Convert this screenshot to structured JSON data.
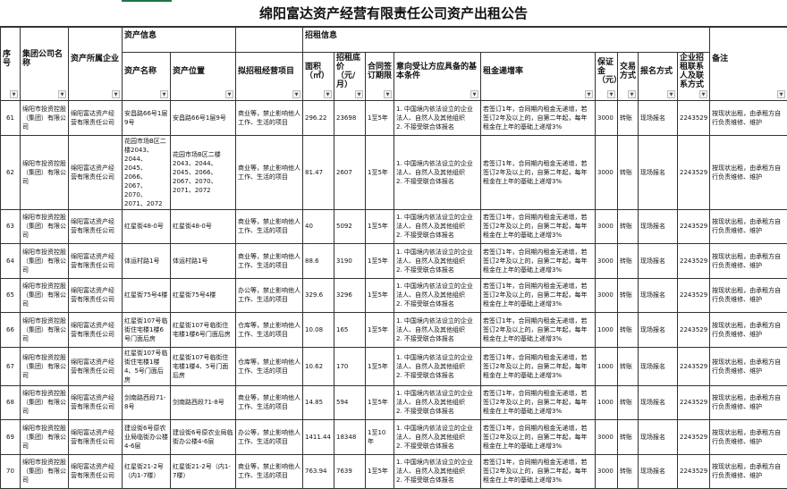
{
  "title": "绵阳富达资产经营有限责任公司资产出租公告",
  "header": {
    "group_asset": "资产信息",
    "group_lease": "招租信息",
    "cols": [
      "序号",
      "集团公司名称",
      "资产所属企业",
      "资产名称",
      "资产位置",
      "拟招租经营项目",
      "面积（㎡）",
      "招租底价（元/月）",
      "合同签订期限",
      "意向受让方应具备的基本条件",
      "租金递增率",
      "保证金（元）",
      "交易方式",
      "报名方式",
      "企业招租联系人及联系方式",
      "备注"
    ],
    "filter_icon": "dropdown-arrow-icon"
  },
  "rows": [
    {
      "no": "61",
      "group": "绵阳市投资控股（集团）有限公司",
      "owner": "绵阳富达资产经营有限责任公司",
      "name": "安昌路66号1层9号",
      "location": "安昌路66号1层9号",
      "project": "商业等，禁止影响他人工作、生活的项目",
      "area": "296.22",
      "price": "23698",
      "term": "1至5年",
      "cond": "1. 中国境内依法设立的企业法人、自然人及其他组织\n2. 不接受联合体报名",
      "rate": "若签订1年，合同期内租金无递增，若签订2年及以上的，自第二年起，每年租金在上年的基础上递增3%",
      "deposit": "3000",
      "trade": "转账",
      "signup": "现场报名",
      "contact": "2243529",
      "remark": "按现状出租，由承租方自行负责维修、维护"
    },
    {
      "no": "62",
      "group": "绵阳市投资控股（集团）有限公司",
      "owner": "绵阳富达资产经营有限责任公司",
      "name": "花园市场B区二楼2043、2044、2045、2066、2067、2070、2071、2072",
      "location": "花园市场B区二楼2043、2044、2045、2066、2067、2070、2071、2072",
      "project": "商业等，禁止影响他人工作、生活的项目",
      "area": "81.47",
      "price": "2607",
      "term": "1至5年",
      "cond": "1. 中国境内依法设立的企业法人、自然人及其他组织\n2. 不接受联合体报名",
      "rate": "若签订1年，合同期内租金无递增，若签订2年及以上的，自第二年起，每年租金在上年的基础上递增3%",
      "deposit": "3000",
      "trade": "转账",
      "signup": "现场报名",
      "contact": "2243529",
      "remark": "按现状出租，由承租方自行负责维修、维护"
    },
    {
      "no": "63",
      "group": "绵阳市投资控股（集团）有限公司",
      "owner": "绵阳富达资产经营有限责任公司",
      "name": "红星街48-0号",
      "location": "红星街48-0号",
      "project": "商业等，禁止影响他人工作、生活的项目",
      "area": "40",
      "price": "5092",
      "term": "1至5年",
      "cond": "1. 中国境内依法设立的企业法人、自然人及其他组织\n2. 不接受联合体报名",
      "rate": "若签订1年，合同期内租金无递增，若签订2年及以上的，自第二年起，每年租金在上年的基础上递增3%",
      "deposit": "3000",
      "trade": "转账",
      "signup": "现场报名",
      "contact": "2243529",
      "remark": "按现状出租，由承租方自行负责维修、维护"
    },
    {
      "no": "64",
      "group": "绵阳市投资控股（集团）有限公司",
      "owner": "绵阳富达资产经营有限责任公司",
      "name": "体运村路1号",
      "location": "体运村路1号",
      "project": "商业等，禁止影响他人工作、生活的项目",
      "area": "88.6",
      "price": "3190",
      "term": "1至5年",
      "cond": "1. 中国境内依法设立的企业法人、自然人及其他组织\n2. 不接受联合体报名",
      "rate": "若签订1年，合同期内租金无递增，若签订2年及以上的，自第二年起，每年租金在上年的基础上递增3%",
      "deposit": "3000",
      "trade": "转账",
      "signup": "现场报名",
      "contact": "2243529",
      "remark": "按现状出租，由承租方自行负责维修、维护"
    },
    {
      "no": "65",
      "group": "绵阳市投资控股（集团）有限公司",
      "owner": "绵阳富达资产经营有限责任公司",
      "name": "红星街75号4楼",
      "location": "红星街75号4楼",
      "project": "办公等，禁止影响他人工作、生活的项目",
      "area": "329.6",
      "price": "3296",
      "term": "1至5年",
      "cond": "1. 中国境内依法设立的企业法人、自然人及其他组织\n2. 不接受联合体报名",
      "rate": "若签订1年，合同期内租金无递增，若签订2年及以上的，自第二年起，每年租金在上年的基础上递增3%",
      "deposit": "3000",
      "trade": "转账",
      "signup": "现场报名",
      "contact": "2243529",
      "remark": "按现状出租，由承租方自行负责维修、维护"
    },
    {
      "no": "66",
      "group": "绵阳市投资控股（集团）有限公司",
      "owner": "绵阳富达资产经营有限责任公司",
      "name": "红星街107号临街住宅楼1楼6号门面后房",
      "location": "红星街107号临街住宅楼1楼6号门面后房",
      "project": "仓库等，禁止影响他人工作、生活的项目",
      "area": "10.08",
      "price": "165",
      "term": "1至5年",
      "cond": "1. 中国境内依法设立的企业法人、自然人及其他组织\n2. 不接受联合体报名",
      "rate": "若签订1年，合同期内租金无递增，若签订2年及以上的，自第二年起，每年租金在上年的基础上递增3%",
      "deposit": "1000",
      "trade": "转账",
      "signup": "现场报名",
      "contact": "2243529",
      "remark": "按现状出租，由承租方自行负责维修、维护"
    },
    {
      "no": "67",
      "group": "绵阳市投资控股（集团）有限公司",
      "owner": "绵阳富达资产经营有限责任公司",
      "name": "红星街107号临街住宅楼1楼4、5号门面后房",
      "location": "红星街107号临街住宅楼1楼4、5号门面后房",
      "project": "仓库等，禁止影响他人工作、生活的项目",
      "area": "10.62",
      "price": "170",
      "term": "1至5年",
      "cond": "1. 中国境内依法设立的企业法人、自然人及其他组织\n2. 不接受联合体报名",
      "rate": "若签订1年，合同期内租金无递增，若签订2年及以上的，自第二年起，每年租金在上年的基础上递增3%",
      "deposit": "1000",
      "trade": "转账",
      "signup": "现场报名",
      "contact": "2243529",
      "remark": "按现状出租，由承租方自行负责维修、维护"
    },
    {
      "no": "68",
      "group": "绵阳市投资控股（集团）有限公司",
      "owner": "绵阳富达资产经营有限责任公司",
      "name": "剑南路西段71-8号",
      "location": "剑南路西段71-8号",
      "project": "商业等，禁止影响他人工作、生活的项目",
      "area": "14.85",
      "price": "594",
      "term": "1至5年",
      "cond": "1. 中国境内依法设立的企业法人、自然人及其他组织\n2. 不接受联合体报名",
      "rate": "若签订1年，合同期内租金无递增，若签订2年及以上的，自第二年起，每年租金在上年的基础上递增3%",
      "deposit": "1000",
      "trade": "转账",
      "signup": "现场报名",
      "contact": "2243529",
      "remark": "按现状出租，由承租方自行负责维修、维护"
    },
    {
      "no": "69",
      "group": "绵阳市投资控股（集团）有限公司",
      "owner": "绵阳富达资产经营有限责任公司",
      "name": "建设街6号原农业局临街办公楼4-6层",
      "location": "建设街6号原农业局临街办公楼4-6层",
      "project": "办公等，禁止影响他人工作、生活的项目",
      "area": "1411.44",
      "price": "18348",
      "term": "1至10年",
      "cond": "1. 中国境内依法设立的企业法人、自然人及其他组织\n2. 不接受联合体报名",
      "rate": "若签订1年，合同期内租金无递增，若签订2年及以上的，自第二年起，每年租金在上年的基础上递增3%",
      "deposit": "3000",
      "trade": "转账",
      "signup": "现场报名",
      "contact": "2243529",
      "remark": "按现状出租，由承租方自行负责维修、维护"
    },
    {
      "no": "70",
      "group": "绵阳市投资控股（集团）有限公司",
      "owner": "绵阳富达资产经营有限责任公司",
      "name": "红星街21-2号（内1-7楼）",
      "location": "红星街21-2号（内1-7楼）",
      "project": "商业等，禁止影响他人工作、生活的项目",
      "area": "763.94",
      "price": "7639",
      "term": "1至5年",
      "cond": "1. 中国境内依法设立的企业法人、自然人及其他组织\n2. 不接受联合体报名",
      "rate": "若签订1年，合同期内租金无递增，若签订2年及以上的，自第二年起，每年租金在上年的基础上递增3%",
      "deposit": "3000",
      "trade": "转账",
      "signup": "现场报名",
      "contact": "2243529",
      "remark": "按现状出租，由承租方自行负责维修、维护"
    }
  ]
}
